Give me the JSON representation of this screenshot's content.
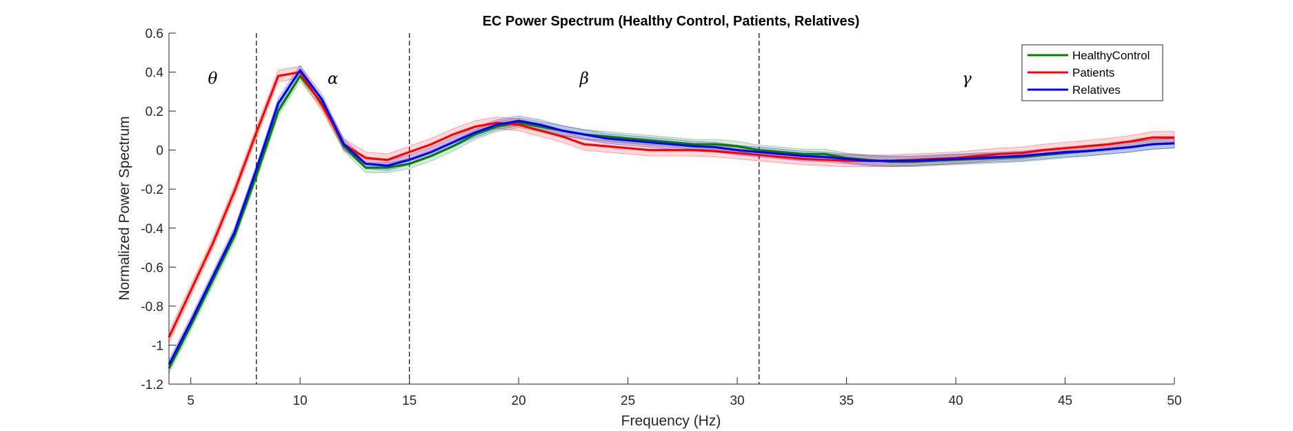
{
  "chart_data": {
    "type": "line",
    "title": "EC Power Spectrum (Healthy Control, Patients, Relatives)",
    "xlabel": "Frequency (Hz)",
    "ylabel": "Normalized Power Spectrum",
    "xlim": [
      4,
      50
    ],
    "ylim": [
      -1.2,
      0.6
    ],
    "xticks": [
      5,
      10,
      15,
      20,
      25,
      30,
      35,
      40,
      45,
      50
    ],
    "yticks": [
      -1.2,
      -1,
      -0.8,
      -0.6,
      -0.4,
      -0.2,
      0,
      0.2,
      0.4,
      0.6
    ],
    "xtick_labels": [
      "5",
      "10",
      "15",
      "20",
      "25",
      "30",
      "35",
      "40",
      "45",
      "50"
    ],
    "ytick_labels": [
      "-1.2",
      "-1",
      "-0.8",
      "-0.6",
      "-0.4",
      "-0.2",
      "0",
      "0.2",
      "0.4",
      "0.6"
    ],
    "grid": false,
    "legend_position": "top-right",
    "band_boundaries": [
      8,
      15,
      31
    ],
    "bands": [
      {
        "label": "θ",
        "x": 6,
        "y": 0.34
      },
      {
        "label": "α",
        "x": 11.5,
        "y": 0.34
      },
      {
        "label": "β",
        "x": 23,
        "y": 0.34
      },
      {
        "label": "γ",
        "x": 40.5,
        "y": 0.34
      }
    ],
    "x": [
      4,
      5,
      6,
      7,
      8,
      9,
      10,
      11,
      12,
      13,
      14,
      15,
      16,
      17,
      18,
      19,
      20,
      21,
      22,
      23,
      24,
      25,
      26,
      27,
      28,
      29,
      30,
      31,
      32,
      33,
      34,
      35,
      36,
      37,
      38,
      39,
      40,
      41,
      42,
      43,
      44,
      45,
      46,
      47,
      48,
      49,
      50
    ],
    "series": [
      {
        "name": "HealthyControl",
        "color": "#008000",
        "values": [
          -1.12,
          -0.9,
          -0.67,
          -0.44,
          -0.13,
          0.2,
          0.38,
          0.24,
          0.02,
          -0.09,
          -0.09,
          -0.07,
          -0.03,
          0.02,
          0.08,
          0.12,
          0.14,
          0.12,
          0.1,
          0.08,
          0.07,
          0.06,
          0.05,
          0.04,
          0.03,
          0.03,
          0.02,
          0.0,
          -0.01,
          -0.02,
          -0.02,
          -0.04,
          -0.05,
          -0.06,
          -0.06,
          -0.055,
          -0.05,
          -0.045,
          -0.04,
          -0.035,
          -0.025,
          -0.015,
          -0.005,
          0.005,
          0.015,
          0.03,
          0.035
        ],
        "band": 0.025
      },
      {
        "name": "Patients",
        "color": "#ff0000",
        "values": [
          -0.96,
          -0.72,
          -0.48,
          -0.21,
          0.09,
          0.38,
          0.4,
          0.23,
          0.03,
          -0.04,
          -0.05,
          -0.01,
          0.03,
          0.08,
          0.12,
          0.14,
          0.13,
          0.1,
          0.07,
          0.03,
          0.02,
          0.01,
          0.0,
          0.0,
          0.0,
          -0.005,
          -0.015,
          -0.025,
          -0.035,
          -0.045,
          -0.05,
          -0.055,
          -0.055,
          -0.055,
          -0.05,
          -0.045,
          -0.04,
          -0.03,
          -0.02,
          -0.015,
          0.0,
          0.01,
          0.02,
          0.03,
          0.045,
          0.065,
          0.065
        ],
        "band": 0.03
      },
      {
        "name": "Relatives",
        "color": "#0000ff",
        "values": [
          -1.1,
          -0.88,
          -0.65,
          -0.42,
          -0.1,
          0.24,
          0.41,
          0.26,
          0.03,
          -0.07,
          -0.08,
          -0.05,
          -0.01,
          0.04,
          0.09,
          0.13,
          0.15,
          0.13,
          0.1,
          0.08,
          0.06,
          0.05,
          0.04,
          0.03,
          0.02,
          0.015,
          0.0,
          -0.01,
          -0.02,
          -0.03,
          -0.035,
          -0.045,
          -0.055,
          -0.055,
          -0.055,
          -0.05,
          -0.045,
          -0.04,
          -0.035,
          -0.03,
          -0.02,
          -0.01,
          -0.005,
          0.005,
          0.015,
          0.03,
          0.035
        ],
        "band": 0.025
      }
    ]
  }
}
